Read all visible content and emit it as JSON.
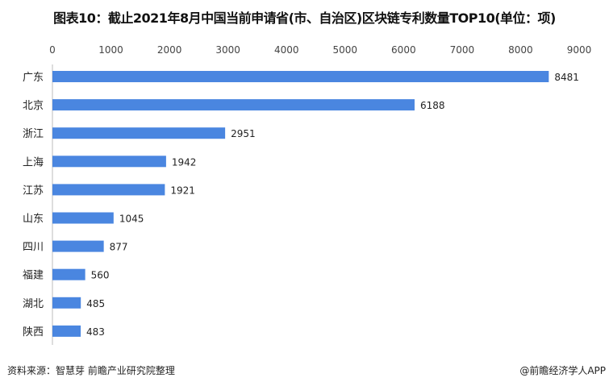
{
  "chart_data": {
    "type": "bar",
    "orientation": "horizontal",
    "title": "图表10：截止2021年8月中国当前申请省(市、自治区)区块链专利数量TOP10(单位：项)",
    "categories": [
      "广东",
      "北京",
      "浙江",
      "上海",
      "江苏",
      "山东",
      "四川",
      "福建",
      "湖北",
      "陕西"
    ],
    "values": [
      8481,
      6188,
      2951,
      1942,
      1921,
      1045,
      877,
      560,
      485,
      483
    ],
    "xlim": [
      0,
      9000
    ],
    "xticks": [
      "0",
      "1000",
      "2000",
      "3000",
      "4000",
      "5000",
      "6000",
      "7000",
      "8000",
      "9000"
    ],
    "xaxis_position": "top",
    "grid": false,
    "bar_color": "#4a86e0",
    "data_labels": true
  },
  "footer": {
    "source": "资料来源：智慧芽 前瞻产业研究院整理",
    "credit": "@前瞻经济学人APP"
  },
  "watermark": "前瞻产业研究院"
}
